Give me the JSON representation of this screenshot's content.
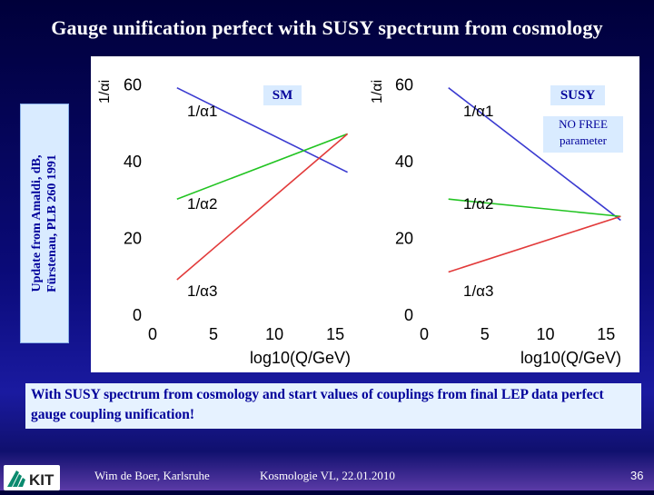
{
  "header": {
    "title": "Gauge unification perfect with SUSY spectrum from cosmology"
  },
  "side_note": {
    "line1": "Update from Amaldi, dB,",
    "line2": "Fürstenau, PLB 260 1991"
  },
  "labels": {
    "sm": "SM",
    "susy": "SUSY",
    "nofree_line1": "NO FREE",
    "nofree_line2": "parameter"
  },
  "conclusion": "With SUSY spectrum from cosmology and start values of couplings from final LEP data perfect gauge coupling unification!",
  "footer": {
    "logo_text": "KIT",
    "author": "Wim de Boer, Karlsruhe",
    "course": "Kosmologie VL,  22.01.2010",
    "page": "36"
  },
  "colors": {
    "alpha1": "#3a3ad0",
    "alpha2": "#22c422",
    "alpha3": "#e23a3a",
    "accent": "#00009a"
  },
  "chart_data": [
    {
      "type": "line",
      "ylabel": "1/αi",
      "xlabel": "log10(Q/GeV)",
      "xlim": [
        0,
        17
      ],
      "ylim": [
        0,
        62
      ],
      "xticks": [
        "0",
        "5",
        "10",
        "15"
      ],
      "yticks": [
        "0",
        "20",
        "40",
        "60"
      ],
      "series": [
        {
          "name": "1/α1",
          "color": "#3a3ad0",
          "x": [
            2,
            16
          ],
          "y": [
            59,
            37
          ]
        },
        {
          "name": "1/α2",
          "color": "#22c422",
          "x": [
            2,
            16
          ],
          "y": [
            30,
            47
          ]
        },
        {
          "name": "1/α3",
          "color": "#e23a3a",
          "x": [
            2,
            16
          ],
          "y": [
            9,
            47
          ]
        }
      ]
    },
    {
      "type": "line",
      "ylabel": "1/αi",
      "xlabel": "log10(Q/GeV)",
      "xlim": [
        0,
        17
      ],
      "ylim": [
        0,
        62
      ],
      "xticks": [
        "0",
        "5",
        "10",
        "15"
      ],
      "yticks": [
        "0",
        "20",
        "40",
        "60"
      ],
      "series": [
        {
          "name": "1/α1",
          "color": "#3a3ad0",
          "x": [
            2,
            16.2
          ],
          "y": [
            59,
            24.5
          ]
        },
        {
          "name": "1/α2",
          "color": "#22c422",
          "x": [
            2,
            16.2
          ],
          "y": [
            30,
            25.5
          ]
        },
        {
          "name": "1/α3",
          "color": "#e23a3a",
          "x": [
            2,
            16.2
          ],
          "y": [
            11,
            25.5
          ]
        }
      ]
    }
  ]
}
